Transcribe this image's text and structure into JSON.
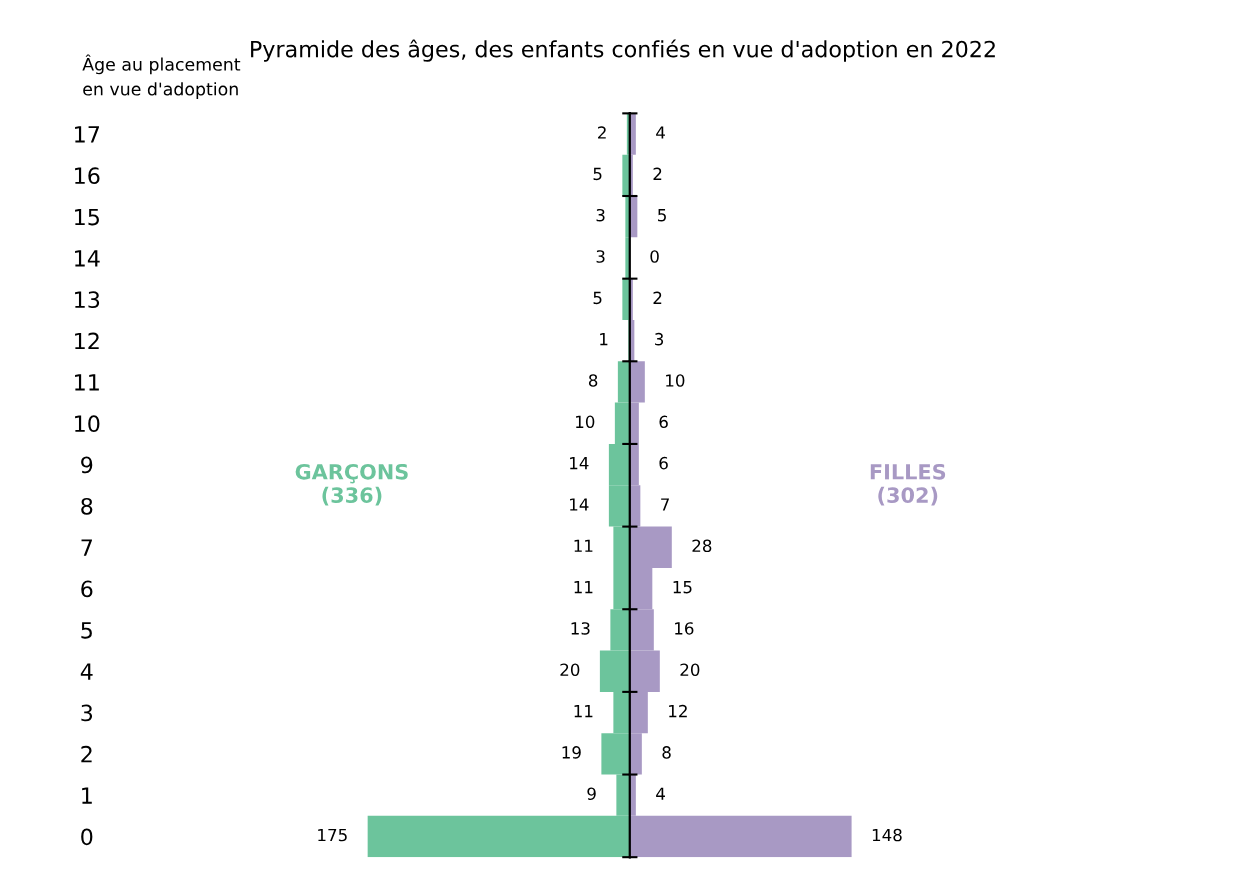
{
  "chart_data": [
    {
      "type": "bar",
      "orientation": "horizontal",
      "title": "Pyramide des âges, des enfants confiés en vue d'adoption en 2022",
      "ylabel": "Âge au placement\nen vue d'adoption",
      "data_labels": true,
      "categories": [
        "17",
        "16",
        "15",
        "14",
        "13",
        "12",
        "11",
        "10",
        "9",
        "8",
        "7",
        "6",
        "5",
        "4",
        "3",
        "2",
        "1",
        "0"
      ],
      "series": [
        {
          "name": "GARÇONS\n(336)",
          "color": "#6cc49c",
          "values": [
            2,
            5,
            3,
            3,
            5,
            1,
            8,
            10,
            14,
            14,
            11,
            11,
            13,
            20,
            11,
            19,
            9,
            175
          ]
        }
      ]
    },
    {
      "type": "bar",
      "orientation": "horizontal",
      "data_labels": true,
      "tick_labels": false,
      "categories": [
        "17",
        "16",
        "15",
        "14",
        "13",
        "12",
        "11",
        "10",
        "9",
        "8",
        "7",
        "6",
        "5",
        "4",
        "3",
        "2",
        "1",
        "0"
      ],
      "series": [
        {
          "name": "FILLES\n(302)",
          "color": "#a899c4",
          "values": [
            4,
            2,
            5,
            0,
            2,
            3,
            10,
            6,
            6,
            7,
            28,
            15,
            16,
            20,
            12,
            8,
            4,
            148
          ]
        }
      ]
    }
  ]
}
